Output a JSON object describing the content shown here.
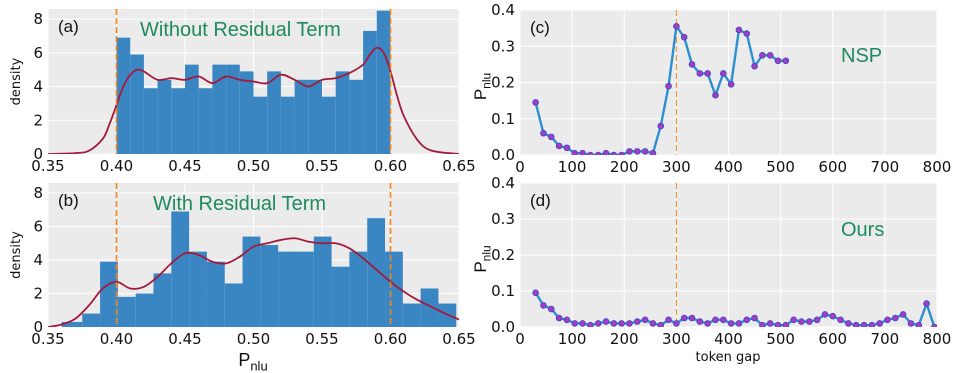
{
  "chart_data": [
    {
      "type": "histogram",
      "panel_label": "(a)",
      "annotation": "Without Residual Term",
      "ylabel": "density",
      "xlim": [
        0.35,
        0.65
      ],
      "ylim": [
        0,
        8.6
      ],
      "xticks": [
        "0.35",
        "0.40",
        "0.45",
        "0.50",
        "0.55",
        "0.60",
        "0.65"
      ],
      "yticks": [
        "0",
        "2",
        "4",
        "6",
        "8"
      ],
      "bins": [
        {
          "x0": 0.4,
          "x1": 0.41,
          "value": 6.9
        },
        {
          "x0": 0.41,
          "x1": 0.42,
          "value": 5.9
        },
        {
          "x0": 0.42,
          "x1": 0.43,
          "value": 3.9
        },
        {
          "x0": 0.43,
          "x1": 0.44,
          "value": 4.4
        },
        {
          "x0": 0.44,
          "x1": 0.45,
          "value": 3.9
        },
        {
          "x0": 0.45,
          "x1": 0.46,
          "value": 5.3
        },
        {
          "x0": 0.46,
          "x1": 0.47,
          "value": 3.9
        },
        {
          "x0": 0.47,
          "x1": 0.48,
          "value": 5.3
        },
        {
          "x0": 0.48,
          "x1": 0.49,
          "value": 5.3
        },
        {
          "x0": 0.49,
          "x1": 0.5,
          "value": 4.9
        },
        {
          "x0": 0.5,
          "x1": 0.51,
          "value": 3.4
        },
        {
          "x0": 0.51,
          "x1": 0.52,
          "value": 4.9
        },
        {
          "x0": 0.52,
          "x1": 0.53,
          "value": 3.4
        },
        {
          "x0": 0.53,
          "x1": 0.54,
          "value": 4.4
        },
        {
          "x0": 0.54,
          "x1": 0.55,
          "value": 4.4
        },
        {
          "x0": 0.55,
          "x1": 0.56,
          "value": 3.4
        },
        {
          "x0": 0.56,
          "x1": 0.57,
          "value": 4.9
        },
        {
          "x0": 0.57,
          "x1": 0.58,
          "value": 4.4
        },
        {
          "x0": 0.58,
          "x1": 0.59,
          "value": 7.3
        },
        {
          "x0": 0.59,
          "x1": 0.6,
          "value": 8.5
        }
      ],
      "kde": {
        "x": [
          0.35,
          0.37,
          0.38,
          0.39,
          0.395,
          0.4,
          0.405,
          0.41,
          0.415,
          0.42,
          0.43,
          0.44,
          0.45,
          0.46,
          0.47,
          0.48,
          0.49,
          0.5,
          0.51,
          0.52,
          0.53,
          0.54,
          0.55,
          0.56,
          0.57,
          0.58,
          0.585,
          0.59,
          0.595,
          0.6,
          0.605,
          0.61,
          0.62,
          0.63,
          0.65
        ],
        "y": [
          0.0,
          0.05,
          0.2,
          0.9,
          1.8,
          2.9,
          4.0,
          4.7,
          5.0,
          4.9,
          4.4,
          4.5,
          4.4,
          4.6,
          4.2,
          4.6,
          4.4,
          4.3,
          4.2,
          4.7,
          4.4,
          4.0,
          4.4,
          4.5,
          4.8,
          5.3,
          5.9,
          6.3,
          6.0,
          4.9,
          3.4,
          2.2,
          0.8,
          0.2,
          0.0
        ]
      },
      "vlines": [
        0.4,
        0.6
      ]
    },
    {
      "type": "histogram",
      "panel_label": "(b)",
      "annotation": "With Residual Term",
      "ylabel": "density",
      "xlabel": "P_nlu",
      "xlim": [
        0.35,
        0.65
      ],
      "ylim": [
        0,
        8.6
      ],
      "xticks": [
        "0.35",
        "0.40",
        "0.45",
        "0.50",
        "0.55",
        "0.60",
        "0.65"
      ],
      "yticks": [
        "0",
        "2",
        "4",
        "6",
        "8"
      ],
      "bins": [
        {
          "x0": 0.36,
          "x1": 0.375,
          "value": 0.3
        },
        {
          "x0": 0.375,
          "x1": 0.388,
          "value": 0.8
        },
        {
          "x0": 0.388,
          "x1": 0.401,
          "value": 3.9
        },
        {
          "x0": 0.401,
          "x1": 0.414,
          "value": 1.8
        },
        {
          "x0": 0.414,
          "x1": 0.427,
          "value": 2.0
        },
        {
          "x0": 0.427,
          "x1": 0.44,
          "value": 3.2
        },
        {
          "x0": 0.44,
          "x1": 0.453,
          "value": 6.9
        },
        {
          "x0": 0.453,
          "x1": 0.466,
          "value": 4.5
        },
        {
          "x0": 0.466,
          "x1": 0.479,
          "value": 3.9
        },
        {
          "x0": 0.479,
          "x1": 0.492,
          "value": 2.6
        },
        {
          "x0": 0.492,
          "x1": 0.505,
          "value": 5.4
        },
        {
          "x0": 0.505,
          "x1": 0.518,
          "value": 4.9
        },
        {
          "x0": 0.518,
          "x1": 0.531,
          "value": 4.5
        },
        {
          "x0": 0.531,
          "x1": 0.544,
          "value": 4.5
        },
        {
          "x0": 0.544,
          "x1": 0.557,
          "value": 5.4
        },
        {
          "x0": 0.557,
          "x1": 0.57,
          "value": 3.6
        },
        {
          "x0": 0.57,
          "x1": 0.583,
          "value": 4.5
        },
        {
          "x0": 0.583,
          "x1": 0.596,
          "value": 6.5
        },
        {
          "x0": 0.596,
          "x1": 0.609,
          "value": 4.5
        },
        {
          "x0": 0.609,
          "x1": 0.622,
          "value": 1.4
        },
        {
          "x0": 0.622,
          "x1": 0.635,
          "value": 2.3
        },
        {
          "x0": 0.635,
          "x1": 0.648,
          "value": 1.4
        }
      ],
      "kde": {
        "x": [
          0.35,
          0.36,
          0.37,
          0.38,
          0.39,
          0.4,
          0.41,
          0.42,
          0.43,
          0.44,
          0.45,
          0.46,
          0.47,
          0.48,
          0.49,
          0.5,
          0.51,
          0.52,
          0.53,
          0.54,
          0.55,
          0.56,
          0.57,
          0.58,
          0.59,
          0.6,
          0.61,
          0.62,
          0.63,
          0.64,
          0.65
        ],
        "y": [
          0.0,
          0.15,
          0.5,
          1.3,
          2.3,
          2.7,
          2.3,
          2.4,
          3.0,
          3.8,
          4.4,
          4.3,
          3.9,
          3.8,
          4.2,
          4.8,
          5.0,
          5.2,
          5.3,
          5.1,
          5.0,
          5.0,
          4.7,
          4.1,
          3.4,
          2.7,
          2.1,
          1.6,
          1.2,
          0.8,
          0.45
        ]
      },
      "vlines": [
        0.4,
        0.6
      ]
    },
    {
      "type": "line",
      "panel_label": "(c)",
      "annotation": "NSP",
      "ylabel": "P_nlu",
      "xlim": [
        0,
        800
      ],
      "ylim": [
        0,
        0.4
      ],
      "xticks": [
        "0",
        "100",
        "200",
        "300",
        "400",
        "500",
        "600",
        "700",
        "800"
      ],
      "yticks": [
        "0.0",
        "0.1",
        "0.2",
        "0.3",
        "0.4"
      ],
      "vline": 300,
      "x": [
        30,
        45,
        60,
        75,
        90,
        105,
        120,
        135,
        150,
        165,
        180,
        195,
        210,
        225,
        240,
        255,
        270,
        285,
        300,
        315,
        330,
        345,
        360,
        375,
        390,
        405,
        420,
        435,
        450,
        465,
        480,
        495,
        510
      ],
      "y": [
        0.145,
        0.06,
        0.05,
        0.025,
        0.02,
        0.005,
        0.005,
        0.0,
        0.0,
        0.005,
        0.0,
        0.0,
        0.01,
        0.01,
        0.01,
        0.005,
        0.08,
        0.19,
        0.355,
        0.325,
        0.25,
        0.225,
        0.225,
        0.165,
        0.225,
        0.195,
        0.345,
        0.335,
        0.245,
        0.275,
        0.275,
        0.26,
        0.26
      ]
    },
    {
      "type": "line",
      "panel_label": "(d)",
      "annotation": "Ours",
      "ylabel": "P_nlu",
      "xlabel": "token gap",
      "xlim": [
        0,
        800
      ],
      "ylim": [
        0,
        0.4
      ],
      "xticks": [
        "0",
        "100",
        "200",
        "300",
        "400",
        "500",
        "600",
        "700",
        "800"
      ],
      "yticks": [
        "0.0",
        "0.1",
        "0.2",
        "0.3",
        "0.4"
      ],
      "vline": 300,
      "x": [
        30,
        45,
        60,
        75,
        90,
        105,
        120,
        135,
        150,
        165,
        180,
        195,
        210,
        225,
        240,
        255,
        270,
        285,
        300,
        315,
        330,
        345,
        360,
        375,
        390,
        405,
        420,
        435,
        450,
        465,
        480,
        495,
        510,
        525,
        540,
        555,
        570,
        585,
        600,
        615,
        630,
        645,
        660,
        675,
        690,
        705,
        720,
        735,
        750,
        765,
        780,
        795
      ],
      "y": [
        0.095,
        0.06,
        0.05,
        0.025,
        0.02,
        0.01,
        0.01,
        0.005,
        0.01,
        0.015,
        0.01,
        0.01,
        0.01,
        0.015,
        0.02,
        0.01,
        0.005,
        0.02,
        0.01,
        0.025,
        0.025,
        0.015,
        0.01,
        0.02,
        0.02,
        0.01,
        0.01,
        0.02,
        0.025,
        0.005,
        0.01,
        0.005,
        0.005,
        0.02,
        0.015,
        0.015,
        0.02,
        0.035,
        0.03,
        0.02,
        0.01,
        0.005,
        0.005,
        0.005,
        0.01,
        0.02,
        0.025,
        0.035,
        0.01,
        0.005,
        0.065,
        0.0
      ]
    }
  ],
  "colors": {
    "bar": "#3a86c3",
    "kde": "#a31a3c",
    "vline": "#f58518",
    "line": "#2e8fcf",
    "marker_face": "#a43cc4",
    "marker_edge": "#3a47c9",
    "annotation": "#1e8a5e",
    "plot_bg": "#ebebeb",
    "grid": "#ffffff"
  }
}
